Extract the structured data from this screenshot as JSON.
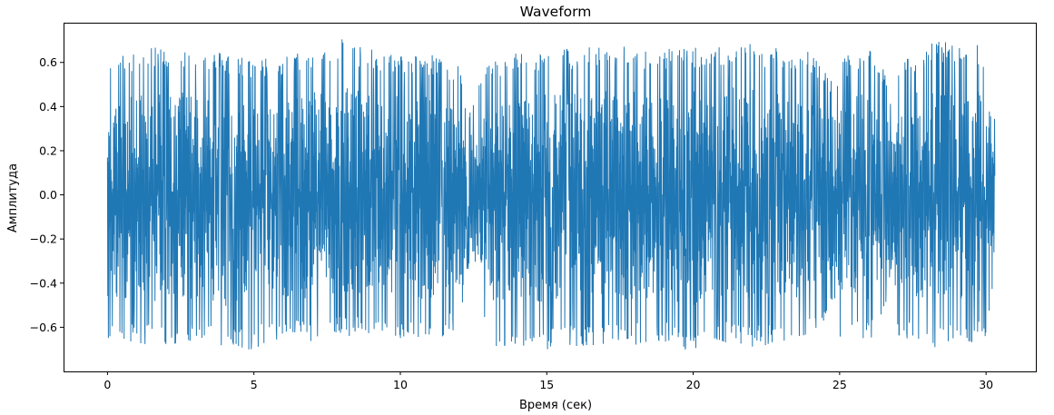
{
  "chart_data": {
    "type": "line",
    "title": "Waveform",
    "xlabel": "Время (сек)",
    "ylabel": "Амплитуда",
    "xlim": [
      -1.5,
      31.7
    ],
    "ylim": [
      -0.8,
      0.78
    ],
    "x_ticks": [
      0,
      5,
      10,
      15,
      20,
      25,
      30
    ],
    "x_tick_labels": [
      "0",
      "5",
      "10",
      "15",
      "20",
      "25",
      "30"
    ],
    "y_ticks": [
      0.6,
      0.4,
      0.2,
      0.0,
      -0.2,
      -0.4,
      -0.6
    ],
    "y_tick_labels": [
      "0.6",
      "0.4",
      "0.2",
      "0.0",
      "−0.2",
      "−0.4",
      "−0.6"
    ],
    "grid": false,
    "legend": "none",
    "duration_sec": 30.3,
    "color": "#1f77b4",
    "envelope": {
      "t": [
        0,
        1,
        2,
        3,
        4,
        5,
        6,
        7,
        7.8,
        9,
        10,
        11,
        12,
        12.3,
        12.5,
        13,
        14,
        15,
        16,
        17,
        18,
        19,
        20,
        21,
        21.5,
        22,
        23,
        24,
        24.8,
        25,
        26,
        26.6,
        26.8,
        27,
        28,
        29,
        30,
        30.3
      ],
      "max": [
        0.62,
        0.65,
        0.68,
        0.66,
        0.65,
        0.62,
        0.63,
        0.66,
        0.73,
        0.66,
        0.64,
        0.64,
        0.6,
        0.35,
        0.45,
        0.6,
        0.65,
        0.66,
        0.67,
        0.68,
        0.67,
        0.66,
        0.68,
        0.67,
        0.71,
        0.69,
        0.67,
        0.66,
        0.5,
        0.62,
        0.66,
        0.55,
        0.35,
        0.62,
        0.69,
        0.7,
        0.68,
        0.38
      ],
      "min": [
        -0.66,
        -0.68,
        -0.7,
        -0.67,
        -0.72,
        -0.7,
        -0.66,
        -0.68,
        -0.64,
        -0.64,
        -0.66,
        -0.68,
        -0.6,
        -0.33,
        -0.4,
        -0.72,
        -0.68,
        -0.7,
        -0.69,
        -0.68,
        -0.68,
        -0.67,
        -0.72,
        -0.67,
        -0.68,
        -0.7,
        -0.68,
        -0.66,
        -0.5,
        -0.66,
        -0.68,
        -0.55,
        -0.3,
        -0.64,
        -0.7,
        -0.68,
        -0.66,
        -0.42
      ]
    }
  }
}
